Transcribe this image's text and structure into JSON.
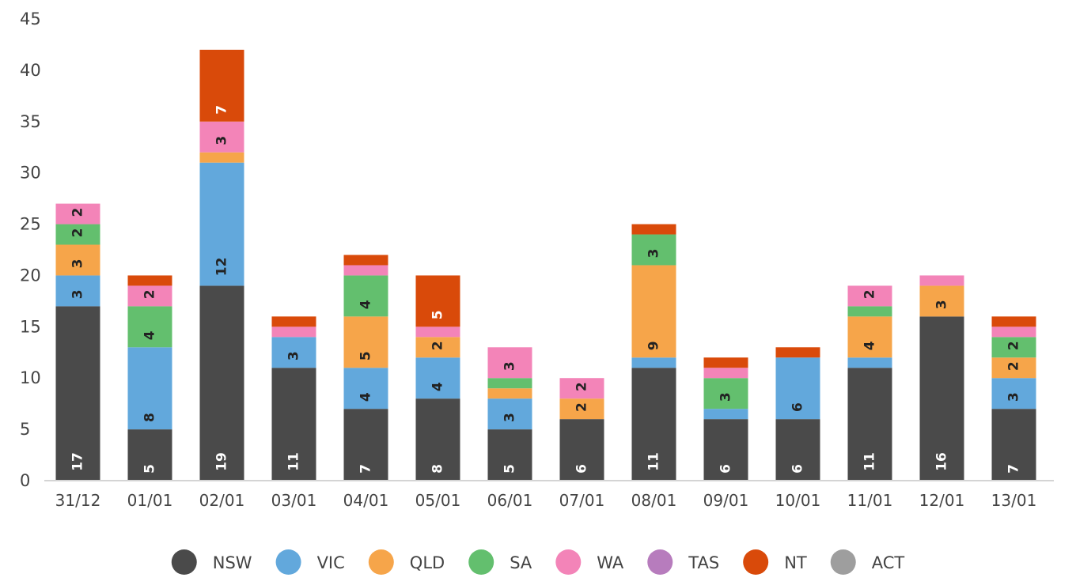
{
  "chart_data": {
    "type": "bar",
    "stacked": true,
    "categories": [
      "31/12",
      "01/01",
      "02/01",
      "03/01",
      "04/01",
      "05/01",
      "06/01",
      "07/01",
      "08/01",
      "09/01",
      "10/01",
      "11/01",
      "12/01",
      "13/01"
    ],
    "series": [
      {
        "name": "NSW",
        "color": "#4a4a4a",
        "label_color": "#ffffff",
        "values": [
          17,
          5,
          19,
          11,
          7,
          8,
          5,
          6,
          11,
          6,
          6,
          11,
          16,
          7
        ],
        "labels": [
          "17",
          "5",
          "19",
          "11",
          "7",
          "8",
          "5",
          "6",
          "11",
          "6",
          "6",
          "11",
          "16",
          "7"
        ]
      },
      {
        "name": "VIC",
        "color": "#62a8dc",
        "label_color": "#222222",
        "values": [
          3,
          8,
          12,
          3,
          4,
          4,
          3,
          0,
          1,
          1,
          6,
          1,
          0,
          3
        ],
        "labels": [
          "3",
          "8",
          "12",
          "3",
          "4",
          "4",
          "3",
          "",
          "",
          "",
          "6",
          "",
          "",
          "3"
        ]
      },
      {
        "name": "QLD",
        "color": "#f6a54a",
        "label_color": "#222222",
        "values": [
          3,
          0,
          1,
          0,
          5,
          2,
          1,
          2,
          9,
          0,
          0,
          4,
          3,
          2
        ],
        "labels": [
          "3",
          "",
          "",
          "",
          "5",
          "2",
          "",
          "2",
          "9",
          "",
          "",
          "4",
          "3",
          "2"
        ]
      },
      {
        "name": "SA",
        "color": "#63bf6e",
        "label_color": "#222222",
        "values": [
          2,
          4,
          0,
          0,
          4,
          0,
          1,
          0,
          3,
          3,
          0,
          1,
          0,
          2
        ],
        "labels": [
          "2",
          "4",
          "",
          "",
          "4",
          "",
          "",
          "",
          "3",
          "3",
          "",
          "",
          "",
          "2"
        ]
      },
      {
        "name": "WA",
        "color": "#f384b8",
        "label_color": "#222222",
        "values": [
          2,
          2,
          3,
          1,
          1,
          1,
          3,
          2,
          0,
          1,
          0,
          2,
          1,
          1
        ],
        "labels": [
          "2",
          "2",
          "3",
          "",
          "",
          "",
          "3",
          "2",
          "",
          "",
          "",
          "2",
          "",
          ""
        ]
      },
      {
        "name": "TAS",
        "color": "#b77cbd",
        "label_color": "#222222",
        "values": [
          0,
          0,
          0,
          0,
          0,
          0,
          0,
          0,
          0,
          0,
          0,
          0,
          0,
          0
        ],
        "labels": [
          "",
          "",
          "",
          "",
          "",
          "",
          "",
          "",
          "",
          "",
          "",
          "",
          "",
          ""
        ]
      },
      {
        "name": "NT",
        "color": "#d94a0a",
        "label_color": "#ffffff",
        "values": [
          0,
          1,
          7,
          1,
          1,
          5,
          0,
          0,
          1,
          1,
          1,
          0,
          0,
          1
        ],
        "labels": [
          "",
          "",
          "7",
          "",
          "",
          "5",
          "",
          "",
          "",
          "",
          "",
          "",
          "",
          ""
        ]
      },
      {
        "name": "ACT",
        "color": "#9e9e9e",
        "label_color": "#222222",
        "values": [
          0,
          0,
          0,
          0,
          0,
          0,
          0,
          0,
          0,
          0,
          0,
          0,
          0,
          0
        ],
        "labels": [
          "",
          "",
          "",
          "",
          "",
          "",
          "",
          "",
          "",
          "",
          "",
          "",
          "",
          ""
        ]
      }
    ],
    "ylim": [
      0,
      45
    ],
    "yticks": [
      "0",
      "5",
      "10",
      "15",
      "20",
      "25",
      "30",
      "35",
      "40",
      "45"
    ],
    "grid": false,
    "legend": "bottom"
  }
}
